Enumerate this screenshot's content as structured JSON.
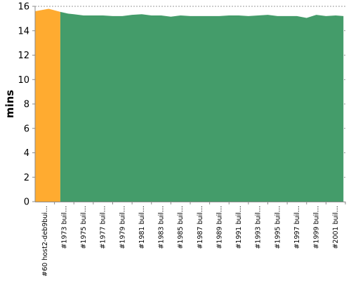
{
  "chart_data": {
    "type": "area",
    "ylabel": "mins",
    "ylim": [
      0,
      16
    ],
    "yticks": [
      0,
      2,
      4,
      6,
      8,
      10,
      12,
      14,
      16
    ],
    "grid": true,
    "x_tick_labels": [
      "#60 host2-deb9bui...",
      "#1973 buil...",
      "#1975 buil...",
      "#1977 buil...",
      "#1979 buil...",
      "#1981 buil...",
      "#1983 buil...",
      "#1985 buil...",
      "#1987 buil...",
      "#1989 buil...",
      "#1991 buil...",
      "#1993 buil...",
      "#1995 buil...",
      "#1997 buil...",
      "#1999 buil...",
      "#2001 buil..."
    ],
    "series": [
      {
        "color": "#ffab30",
        "x": [
          0,
          0.7,
          1.3
        ],
        "values": [
          15.6,
          15.8,
          15.55
        ]
      },
      {
        "color": "#449c6a",
        "x": [
          1.3,
          1.7,
          2,
          2.5,
          3,
          3.5,
          4,
          4.5,
          5,
          5.5,
          6,
          6.5,
          7,
          7.5,
          8,
          8.5,
          9,
          9.5,
          10,
          10.5,
          11,
          11.5,
          12,
          12.5,
          13,
          13.5,
          14,
          14.5,
          15,
          15.5,
          15.9
        ],
        "values": [
          15.55,
          15.4,
          15.35,
          15.25,
          15.25,
          15.25,
          15.2,
          15.2,
          15.3,
          15.35,
          15.25,
          15.25,
          15.15,
          15.25,
          15.2,
          15.2,
          15.2,
          15.2,
          15.25,
          15.25,
          15.2,
          15.25,
          15.3,
          15.2,
          15.2,
          15.2,
          15.05,
          15.3,
          15.2,
          15.25,
          15.2
        ]
      }
    ]
  }
}
